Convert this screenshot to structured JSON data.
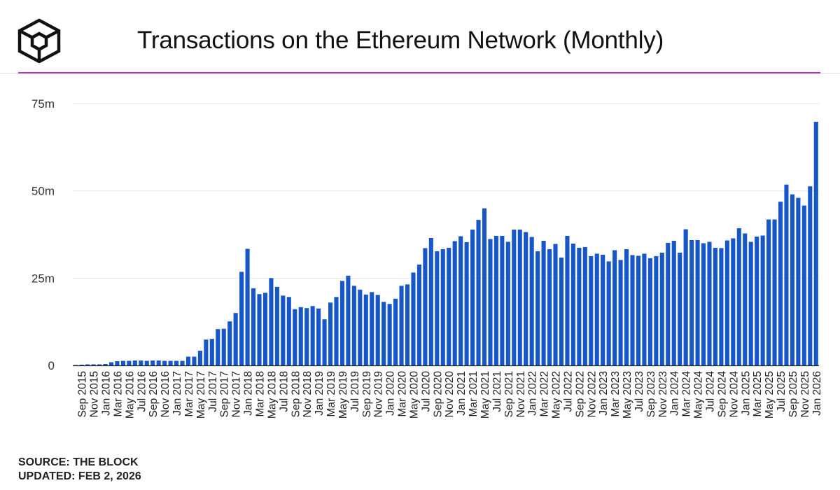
{
  "header": {
    "title": "Transactions on the Ethereum Network (Monthly)",
    "logo_icon": "the-block-cube-logo-icon",
    "accent_color": "#b530c8"
  },
  "footer": {
    "source": "SOURCE: THE BLOCK",
    "updated": "UPDATED: FEB 2, 2026"
  },
  "chart_data": {
    "type": "bar",
    "title": "Transactions on the Ethereum Network (Monthly)",
    "xlabel": "",
    "ylabel": "",
    "ylim": [
      0,
      75
    ],
    "y_unit": "m",
    "yticks": [
      0,
      25,
      50,
      75
    ],
    "ytick_labels": [
      "0",
      "25m",
      "50m",
      "75m"
    ],
    "grid": true,
    "bar_color": "#1656c8",
    "categories": [
      "Aug 2015",
      "Sep 2015",
      "Oct 2015",
      "Nov 2015",
      "Dec 2015",
      "Jan 2016",
      "Feb 2016",
      "Mar 2016",
      "Apr 2016",
      "May 2016",
      "Jun 2016",
      "Jul 2016",
      "Aug 2016",
      "Sep 2016",
      "Oct 2016",
      "Nov 2016",
      "Dec 2016",
      "Jan 2017",
      "Feb 2017",
      "Mar 2017",
      "Apr 2017",
      "May 2017",
      "Jun 2017",
      "Jul 2017",
      "Aug 2017",
      "Sep 2017",
      "Oct 2017",
      "Nov 2017",
      "Dec 2017",
      "Jan 2018",
      "Feb 2018",
      "Mar 2018",
      "Apr 2018",
      "May 2018",
      "Jun 2018",
      "Jul 2018",
      "Aug 2018",
      "Sep 2018",
      "Oct 2018",
      "Nov 2018",
      "Dec 2018",
      "Jan 2019",
      "Feb 2019",
      "Mar 2019",
      "Apr 2019",
      "May 2019",
      "Jun 2019",
      "Jul 2019",
      "Aug 2019",
      "Sep 2019",
      "Oct 2019",
      "Nov 2019",
      "Dec 2019",
      "Jan 2020",
      "Feb 2020",
      "Mar 2020",
      "Apr 2020",
      "May 2020",
      "Jun 2020",
      "Jul 2020",
      "Aug 2020",
      "Sep 2020",
      "Oct 2020",
      "Nov 2020",
      "Dec 2020",
      "Jan 2021",
      "Feb 2021",
      "Mar 2021",
      "Apr 2021",
      "May 2021",
      "Jun 2021",
      "Jul 2021",
      "Aug 2021",
      "Sep 2021",
      "Oct 2021",
      "Nov 2021",
      "Dec 2021",
      "Jan 2022",
      "Feb 2022",
      "Mar 2022",
      "Apr 2022",
      "May 2022",
      "Jun 2022",
      "Jul 2022",
      "Aug 2022",
      "Sep 2022",
      "Oct 2022",
      "Nov 2022",
      "Dec 2022",
      "Jan 2023",
      "Feb 2023",
      "Mar 2023",
      "Apr 2023",
      "May 2023",
      "Jun 2023",
      "Jul 2023",
      "Aug 2023",
      "Sep 2023",
      "Oct 2023",
      "Nov 2023",
      "Dec 2023",
      "Jan 2024",
      "Feb 2024",
      "Mar 2024",
      "Apr 2024",
      "May 2024",
      "Jun 2024",
      "Jul 2024",
      "Aug 2024",
      "Sep 2024",
      "Oct 2024",
      "Nov 2024",
      "Dec 2024",
      "Jan 2025",
      "Feb 2025",
      "Mar 2025",
      "Apr 2025",
      "May 2025",
      "Jun 2025",
      "Jul 2025",
      "Aug 2025",
      "Sep 2025",
      "Oct 2025",
      "Nov 2025",
      "Dec 2025",
      "Jan 2026"
    ],
    "tick_labels": [
      "Sep 2015",
      "Nov 2015",
      "Jan 2016",
      "Mar 2016",
      "May 2016",
      "Jul 2016",
      "Sep 2016",
      "Nov 2016",
      "Jan 2017",
      "Mar 2017",
      "May 2017",
      "Jul 2017",
      "Sep 2017",
      "Nov 2017",
      "Jan 2018",
      "Mar 2018",
      "May 2018",
      "Jul 2018",
      "Sep 2018",
      "Nov 2018",
      "Jan 2019",
      "Mar 2019",
      "May 2019",
      "Jul 2019",
      "Sep 2019",
      "Nov 2019",
      "Jan 2020",
      "Mar 2020",
      "May 2020",
      "Jul 2020",
      "Sep 2020",
      "Nov 2020",
      "Jan 2021",
      "Mar 2021",
      "May 2021",
      "Jul 2021",
      "Sep 2021",
      "Nov 2021",
      "Jan 2022",
      "Mar 2022",
      "May 2022",
      "Jul 2022",
      "Sep 2022",
      "Nov 2022",
      "Jan 2023",
      "Mar 2023",
      "May 2023",
      "Jul 2023",
      "Sep 2023",
      "Nov 2023",
      "Jan 2024",
      "Mar 2024",
      "May 2024",
      "Jul 2024",
      "Sep 2024",
      "Nov 2024",
      "Jan 2025",
      "Mar 2025",
      "May 2025",
      "Jul 2025",
      "Sep 2025",
      "Nov 2025",
      "Jan 2026"
    ],
    "values": [
      0.1,
      0.2,
      0.3,
      0.3,
      0.3,
      0.4,
      0.9,
      1.2,
      1.3,
      1.3,
      1.4,
      1.4,
      1.3,
      1.4,
      1.4,
      1.3,
      1.3,
      1.3,
      1.3,
      2.5,
      2.5,
      4.2,
      7.4,
      7.6,
      10.4,
      10.5,
      12.6,
      15.0,
      26.8,
      33.4,
      22.1,
      20.4,
      20.8,
      25.0,
      22.5,
      20.0,
      19.6,
      16.1,
      16.7,
      16.4,
      17.0,
      16.3,
      13.2,
      18.0,
      19.6,
      24.2,
      25.7,
      22.8,
      21.7,
      20.3,
      21.0,
      20.2,
      18.2,
      17.6,
      19.1,
      22.8,
      23.2,
      26.6,
      28.9,
      33.6,
      36.5,
      32.7,
      33.3,
      33.7,
      35.6,
      37.0,
      35.3,
      38.9,
      41.7,
      45.0,
      36.2,
      37.1,
      37.1,
      35.4,
      38.9,
      38.9,
      38.2,
      36.8,
      32.7,
      35.7,
      33.3,
      34.8,
      30.9,
      37.1,
      34.9,
      33.7,
      33.9,
      31.3,
      32.0,
      31.7,
      29.8,
      33.0,
      30.2,
      33.3,
      31.6,
      31.4,
      32.0,
      30.7,
      31.3,
      32.3,
      35.1,
      35.7,
      32.3,
      39.0,
      35.9,
      35.9,
      35.0,
      35.4,
      33.7,
      33.6,
      35.8,
      36.4,
      39.3,
      37.8,
      35.4,
      36.9,
      37.2,
      41.8,
      41.8,
      46.9,
      51.8,
      49.0,
      48.0,
      45.8,
      51.3,
      69.8
    ]
  }
}
